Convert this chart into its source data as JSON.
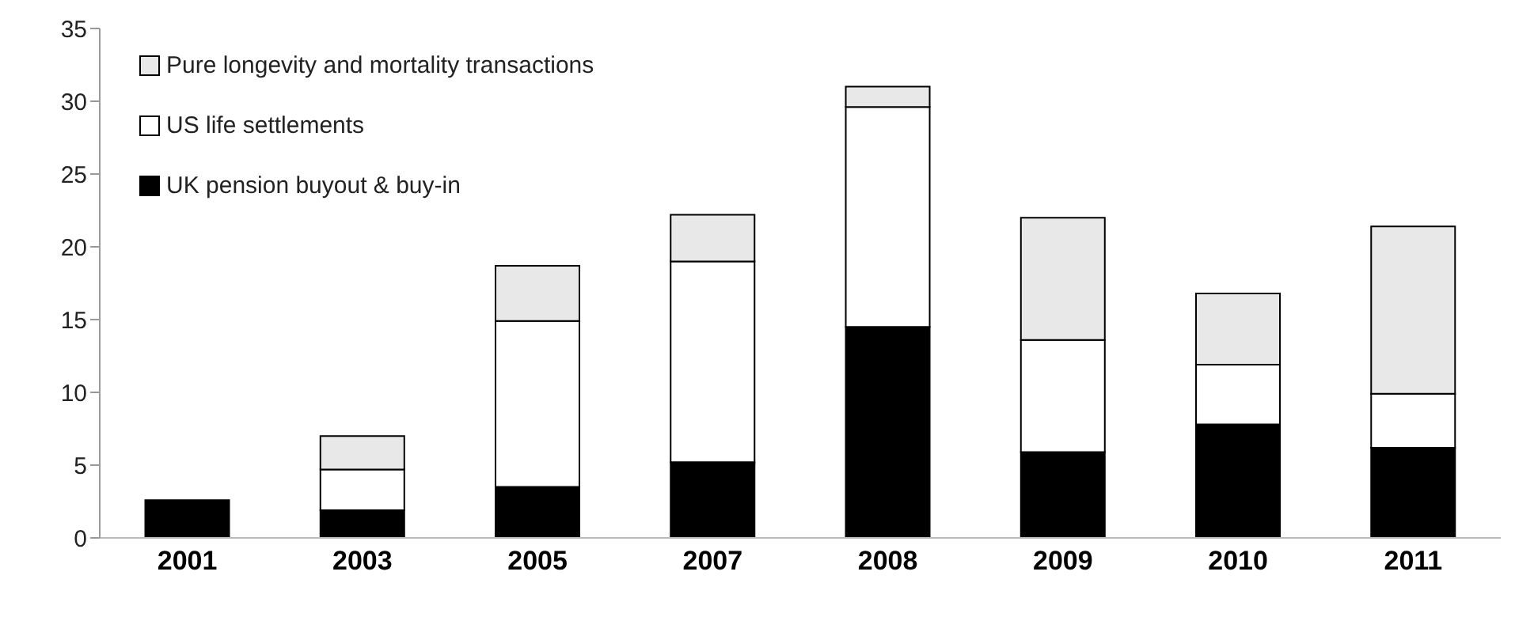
{
  "chart_data": {
    "type": "bar",
    "stacked": true,
    "categories": [
      "2001",
      "2003",
      "2005",
      "2007",
      "2008",
      "2009",
      "2010",
      "2011"
    ],
    "series": [
      {
        "name": "UK pension buyout & buy-in",
        "color": "#000000",
        "values": [
          2.6,
          1.9,
          3.5,
          5.2,
          14.5,
          5.9,
          7.8,
          6.2
        ]
      },
      {
        "name": "US life settlements",
        "color": "#ffffff",
        "values": [
          null,
          2.8,
          11.4,
          13.8,
          15.1,
          7.7,
          4.1,
          3.7
        ]
      },
      {
        "name": "Pure longevity and mortality transactions",
        "color": "#e8e8e8",
        "values": [
          null,
          2.3,
          3.8,
          3.2,
          1.4,
          8.4,
          4.9,
          11.5
        ]
      }
    ],
    "ylim": [
      0,
      35
    ],
    "yticks": [
      0,
      5,
      10,
      15,
      20,
      25,
      30,
      35
    ],
    "grid": false,
    "legend": "top left"
  }
}
